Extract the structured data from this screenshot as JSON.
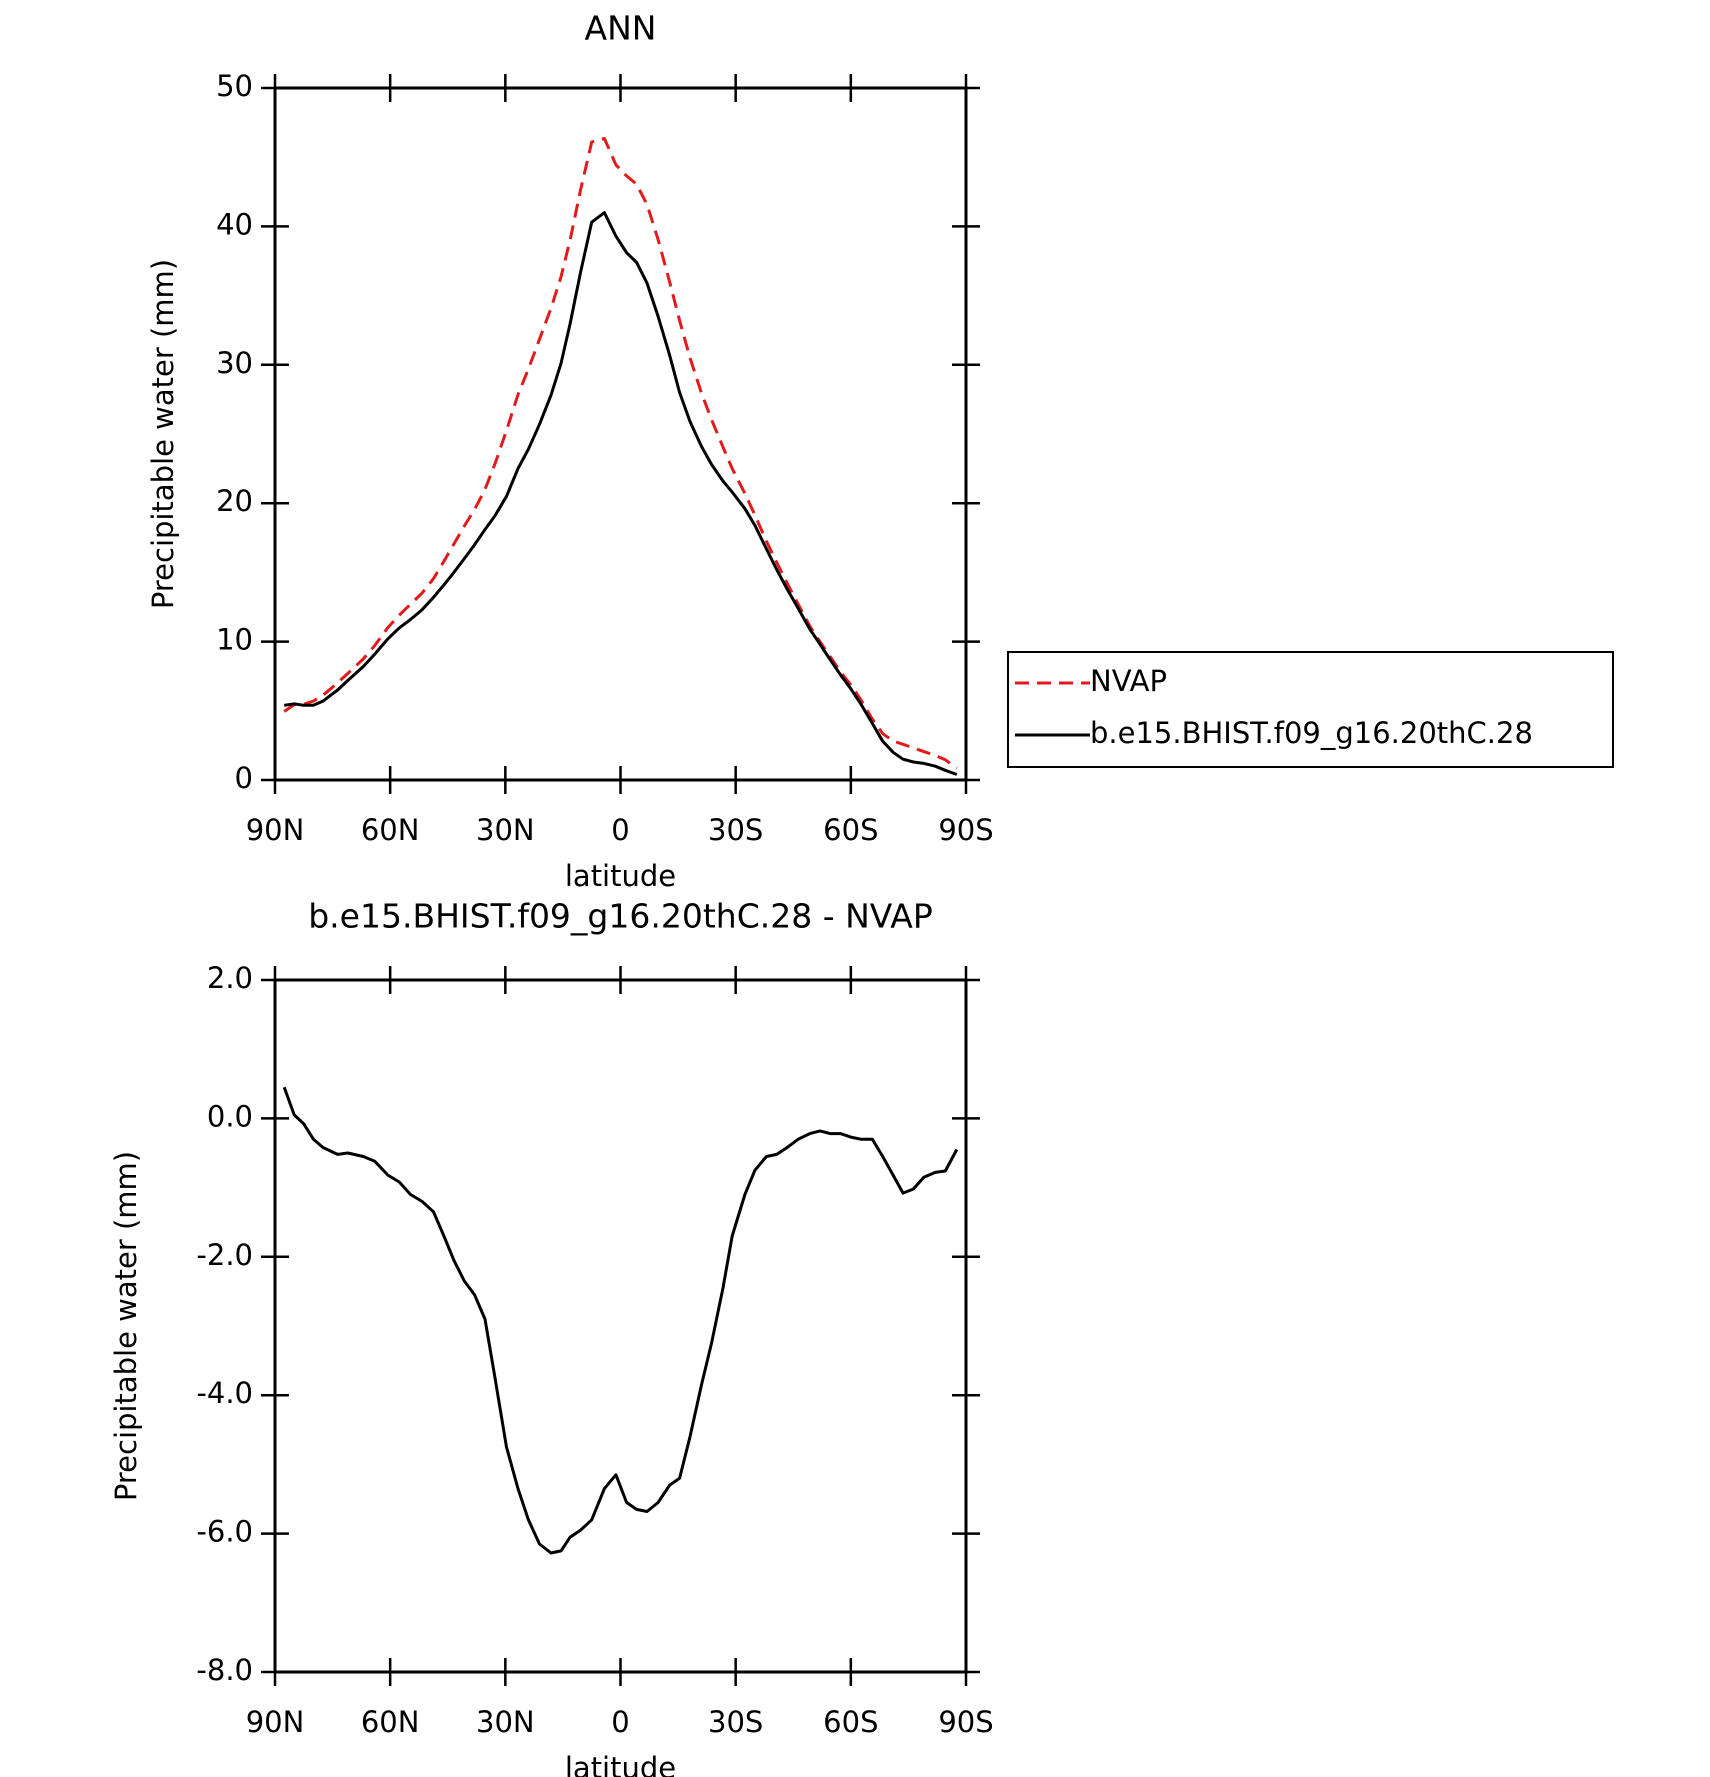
{
  "chart_data": [
    {
      "type": "line",
      "title": "ANN",
      "xlabel": "latitude",
      "ylabel": "Precipitable water (mm)",
      "x": [
        87.6,
        85,
        82.5,
        80,
        77.5,
        73.7,
        71,
        67,
        64,
        60.6,
        57.6,
        54.7,
        51.7,
        48.7,
        46,
        43.4,
        40.7,
        38,
        35.3,
        32.7,
        29.7,
        26.7,
        24,
        21.1,
        18.1,
        15.5,
        13.1,
        10.4,
        7.5,
        4.2,
        1.2,
        -1.6,
        -4.2,
        -6.9,
        -9.8,
        -12.8,
        -15.4,
        -18.1,
        -21.1,
        -23.7,
        -26.7,
        -29.1,
        -32.4,
        -35,
        -38,
        -40.7,
        -43.4,
        -46.3,
        -49.3,
        -52,
        -54.6,
        -57.3,
        -60,
        -62.6,
        -65.6,
        -68.3,
        -71,
        -73.6,
        -76.3,
        -79,
        -82,
        -84.6,
        -87.6
      ],
      "series": [
        {
          "name": "NVAP",
          "color": "#e31a1c",
          "dash": true,
          "values": [
            4.95,
            5.45,
            5.48,
            5.7,
            6.12,
            7.02,
            7.7,
            8.75,
            9.72,
            11.02,
            11.92,
            12.7,
            13.5,
            14.55,
            15.8,
            17.05,
            18.35,
            19.55,
            21.0,
            22.85,
            25.25,
            27.85,
            29.7,
            31.85,
            34.08,
            36.35,
            39.05,
            42.65,
            46.1,
            46.35,
            44.45,
            43.65,
            43.05,
            41.58,
            39.05,
            36.0,
            33.2,
            30.5,
            27.95,
            26.05,
            24.05,
            22.5,
            20.7,
            19.15,
            17.25,
            15.72,
            14.22,
            12.7,
            11.12,
            9.98,
            8.92,
            7.82,
            6.87,
            5.8,
            4.4,
            3.35,
            2.82,
            2.58,
            2.32,
            2.05,
            1.78,
            1.46,
            0.85
          ]
        },
        {
          "name": "b.e15.BHIST.f09_g16.20thC.28",
          "color": "#000000",
          "dash": false,
          "values": [
            5.4,
            5.5,
            5.4,
            5.4,
            5.7,
            6.5,
            7.2,
            8.2,
            9.1,
            10.2,
            11.0,
            11.6,
            12.3,
            13.2,
            14.1,
            15.0,
            16.0,
            17.0,
            18.1,
            19.1,
            20.5,
            22.5,
            23.9,
            25.7,
            27.8,
            30.1,
            33.0,
            36.7,
            40.3,
            41.0,
            39.3,
            38.1,
            37.4,
            35.9,
            33.5,
            30.7,
            28.0,
            25.9,
            24.1,
            22.8,
            21.6,
            20.8,
            19.6,
            18.4,
            16.7,
            15.2,
            13.8,
            12.4,
            10.9,
            9.8,
            8.7,
            7.6,
            6.6,
            5.5,
            4.1,
            2.8,
            2.0,
            1.5,
            1.3,
            1.2,
            1.0,
            0.7,
            0.4
          ]
        }
      ],
      "xlim": [
        90,
        -90
      ],
      "xticks": [
        {
          "value": 90,
          "label": "90N"
        },
        {
          "value": 60,
          "label": "60N"
        },
        {
          "value": 30,
          "label": "30N"
        },
        0,
        {
          "value": -30,
          "label": "30S"
        },
        {
          "value": -60,
          "label": "60S"
        },
        {
          "value": -90,
          "label": "90S"
        }
      ],
      "ylim": [
        0,
        50
      ],
      "yticks": [
        0,
        10,
        20,
        30,
        40,
        50
      ],
      "legend": "right"
    },
    {
      "type": "line",
      "title": "b.e15.BHIST.f09_g16.20thC.28 - NVAP",
      "xlabel": "latitude",
      "ylabel": "Precipitable water (mm)",
      "x": [
        87.6,
        85,
        82.5,
        80,
        77.5,
        73.7,
        71,
        67,
        64,
        60.6,
        57.6,
        54.7,
        51.7,
        48.7,
        46,
        43.4,
        40.7,
        38,
        35.3,
        32.7,
        29.7,
        26.7,
        24,
        21.1,
        18.1,
        15.5,
        13.1,
        10.4,
        7.5,
        4.2,
        1.2,
        -1.6,
        -4.2,
        -6.9,
        -9.8,
        -12.8,
        -15.4,
        -18.1,
        -21.1,
        -23.7,
        -26.7,
        -29.1,
        -32.4,
        -35,
        -38,
        -40.7,
        -43.4,
        -46.3,
        -49.3,
        -52,
        -54.6,
        -57.3,
        -60,
        -62.6,
        -65.6,
        -68.3,
        -71,
        -73.6,
        -76.3,
        -79,
        -82,
        -84.6,
        -87.6
      ],
      "color": "#000000",
      "values": [
        0.45,
        0.05,
        -0.08,
        -0.3,
        -0.42,
        -0.52,
        -0.5,
        -0.55,
        -0.62,
        -0.82,
        -0.92,
        -1.1,
        -1.2,
        -1.35,
        -1.7,
        -2.05,
        -2.35,
        -2.55,
        -2.9,
        -3.75,
        -4.75,
        -5.35,
        -5.8,
        -6.15,
        -6.28,
        -6.25,
        -6.05,
        -5.95,
        -5.8,
        -5.35,
        -5.15,
        -5.55,
        -5.65,
        -5.68,
        -5.55,
        -5.3,
        -5.2,
        -4.6,
        -3.85,
        -3.25,
        -2.45,
        -1.7,
        -1.1,
        -0.75,
        -0.55,
        -0.52,
        -0.42,
        -0.3,
        -0.22,
        -0.18,
        -0.22,
        -0.22,
        -0.27,
        -0.3,
        -0.3,
        -0.55,
        -0.82,
        -1.08,
        -1.02,
        -0.85,
        -0.78,
        -0.76,
        -0.45
      ],
      "xlim": [
        90,
        -90
      ],
      "xticks": [
        {
          "value": 90,
          "label": "90N"
        },
        {
          "value": 60,
          "label": "60N"
        },
        {
          "value": 30,
          "label": "30N"
        },
        0,
        {
          "value": -30,
          "label": "30S"
        },
        {
          "value": -60,
          "label": "60S"
        },
        {
          "value": -90,
          "label": "90S"
        }
      ],
      "ylim": [
        -8,
        2
      ],
      "yticks": [
        {
          "value": -8,
          "label": "-8.0"
        },
        {
          "value": -6,
          "label": "-6.0"
        },
        {
          "value": -4,
          "label": "-4.0"
        },
        {
          "value": -2,
          "label": "-2.0"
        },
        {
          "value": 0,
          "label": "0.0"
        },
        {
          "value": 2,
          "label": "2.0"
        }
      ]
    }
  ]
}
